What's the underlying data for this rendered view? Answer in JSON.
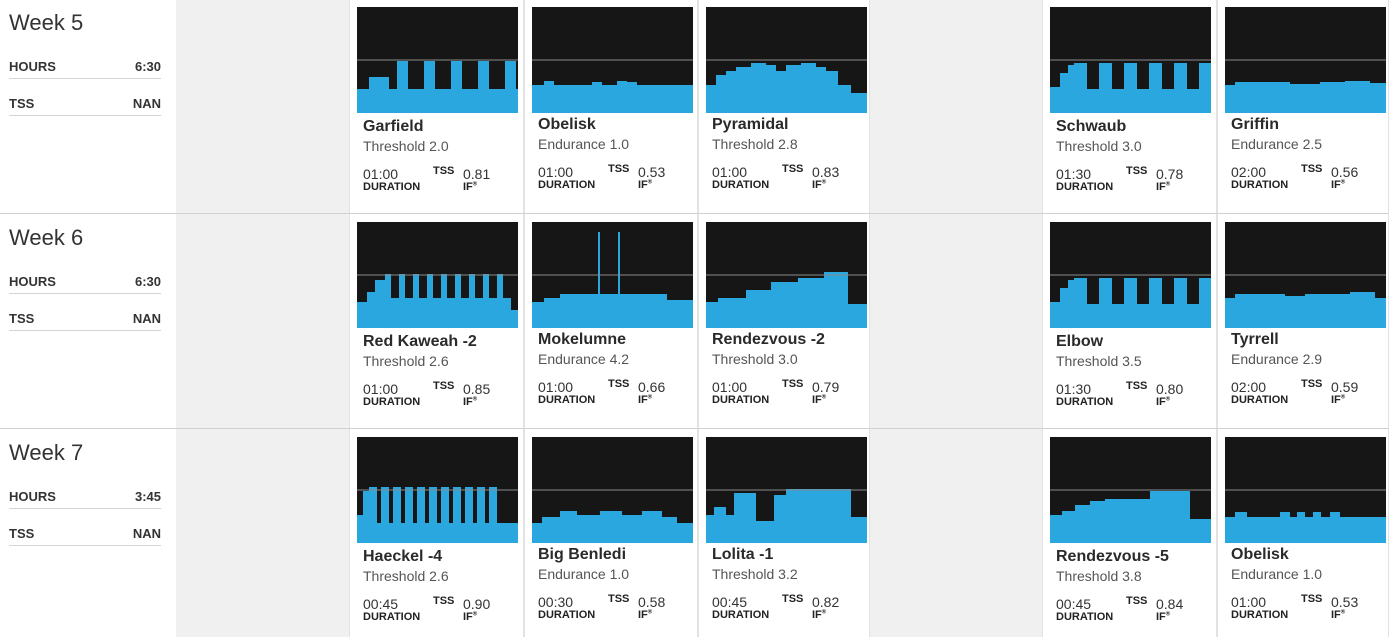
{
  "colors": {
    "profile_bg": "#161616",
    "profile_fill": "#2aa7df",
    "ftp_line": "#8a8a8a",
    "empty_day": "#f0f0f0"
  },
  "labels": {
    "hours": "HOURS",
    "tss": "TSS",
    "duration": "DURATION",
    "tss_short": "TSS",
    "if": "IF"
  },
  "weeks": [
    {
      "title": "Week 5",
      "hours": "6:30",
      "tss": "NAN",
      "workouts": [
        {
          "day": 2,
          "name": "Garfield",
          "zone": "Threshold 2.0",
          "duration": "01:00",
          "if": "0.81",
          "profile": "intervals5"
        },
        {
          "day": 3,
          "name": "Obelisk",
          "zone": "Endurance 1.0",
          "duration": "01:00",
          "if": "0.53",
          "profile": "bumps"
        },
        {
          "day": 4,
          "name": "Pyramidal",
          "zone": "Threshold 2.8",
          "duration": "01:00",
          "if": "0.83",
          "profile": "pyramid"
        },
        {
          "day": 6,
          "name": "Schwaub",
          "zone": "Threshold 3.0",
          "duration": "01:30",
          "if": "0.78",
          "profile": "intervals6"
        },
        {
          "day": 7,
          "name": "Griffin",
          "zone": "Endurance 2.5",
          "duration": "02:00",
          "if": "0.56",
          "profile": "flat"
        }
      ]
    },
    {
      "title": "Week 6",
      "hours": "6:30",
      "tss": "NAN",
      "workouts": [
        {
          "day": 2,
          "name": "Red Kaweah -2",
          "zone": "Threshold 2.6",
          "duration": "01:00",
          "if": "0.85",
          "profile": "manyIntervals"
        },
        {
          "day": 3,
          "name": "Mokelumne",
          "zone": "Endurance 4.2",
          "duration": "01:00",
          "if": "0.66",
          "profile": "spikes"
        },
        {
          "day": 4,
          "name": "Rendezvous -2",
          "zone": "Threshold 3.0",
          "duration": "01:00",
          "if": "0.79",
          "profile": "steps"
        },
        {
          "day": 6,
          "name": "Elbow",
          "zone": "Threshold 3.5",
          "duration": "01:30",
          "if": "0.80",
          "profile": "intervals6"
        },
        {
          "day": 7,
          "name": "Tyrrell",
          "zone": "Endurance 2.9",
          "duration": "02:00",
          "if": "0.59",
          "profile": "flat2"
        }
      ]
    },
    {
      "title": "Week 7",
      "hours": "3:45",
      "tss": "NAN",
      "workouts": [
        {
          "day": 2,
          "name": "Haeckel -4",
          "zone": "Threshold 2.6",
          "duration": "00:45",
          "if": "0.90",
          "profile": "denseIntervals"
        },
        {
          "day": 3,
          "name": "Big Benledi",
          "zone": "Endurance 1.0",
          "duration": "00:30",
          "if": "0.58",
          "profile": "hump"
        },
        {
          "day": 4,
          "name": "Lolita -1",
          "zone": "Threshold 3.2",
          "duration": "00:45",
          "if": "0.82",
          "profile": "lolita"
        },
        {
          "day": 6,
          "name": "Rendezvous -5",
          "zone": "Threshold 3.8",
          "duration": "00:45",
          "if": "0.84",
          "profile": "rampUp"
        },
        {
          "day": 7,
          "name": "Obelisk",
          "zone": "Endurance 1.0",
          "duration": "01:00",
          "if": "0.53",
          "profile": "bumps2"
        }
      ]
    }
  ]
}
